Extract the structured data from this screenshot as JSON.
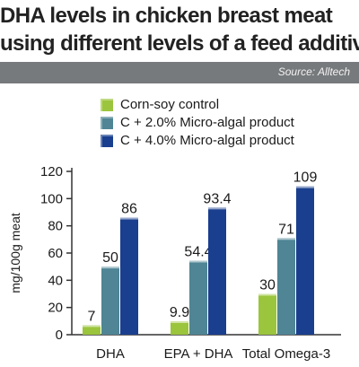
{
  "title_lines": [
    "DHA levels in chicken breast meat",
    "using different levels of a feed additive"
  ],
  "source": "Source: Alltech",
  "colors": {
    "source_bar": "#777a7c",
    "axis": "#333333",
    "series": [
      "#9bc53d",
      "#4f8594",
      "#1a3f8f"
    ]
  },
  "chart_data": {
    "type": "bar",
    "categories": [
      "DHA",
      "EPA + DHA",
      "Total Omega-3"
    ],
    "series": [
      {
        "name": "Corn-soy control",
        "values": [
          7,
          9.9,
          30
        ]
      },
      {
        "name": "C + 2.0% Micro-algal product",
        "values": [
          50,
          54.4,
          71
        ]
      },
      {
        "name": "C + 4.0% Micro-algal product",
        "values": [
          86,
          93.4,
          109
        ]
      }
    ],
    "ylabel": "mg/100g meat",
    "xlabel": "",
    "ylim": [
      0,
      120
    ],
    "yticks": [
      0,
      20,
      40,
      60,
      80,
      100,
      120
    ],
    "legend_position": "top-left",
    "grid": false
  }
}
